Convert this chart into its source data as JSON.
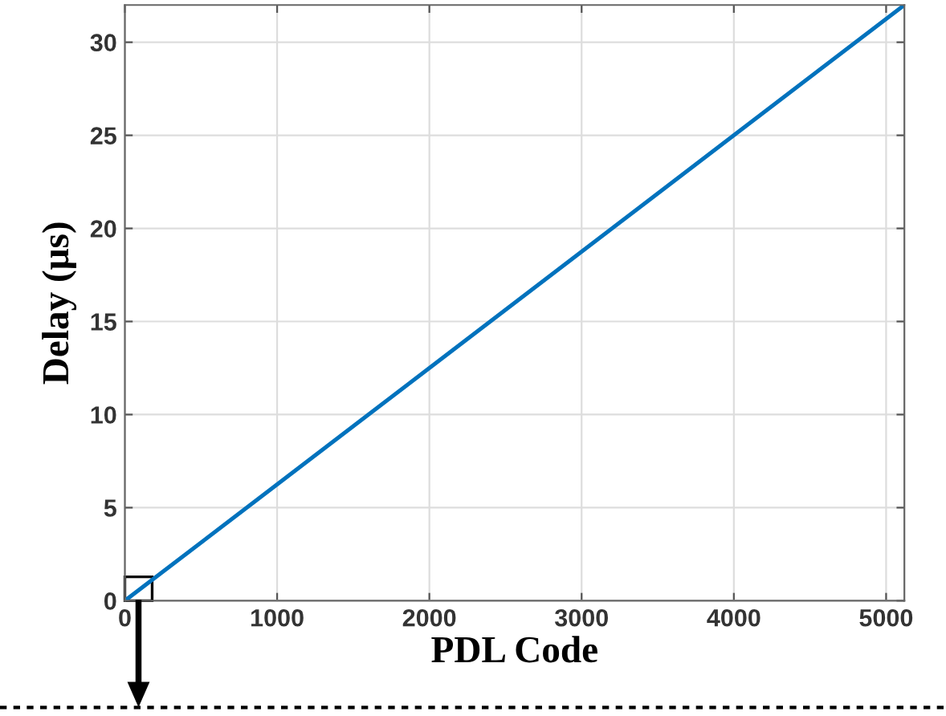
{
  "chart_data": {
    "type": "line",
    "xlabel": "PDL Code",
    "ylabel": "Delay (μs)",
    "x": [
      0,
      1000,
      2000,
      3000,
      4000,
      5120
    ],
    "series": [
      {
        "color": "#0072bd",
        "values": [
          0,
          6.25,
          12.5,
          18.75,
          25,
          32
        ]
      }
    ],
    "xlim": [
      0,
      5120
    ],
    "ylim": [
      0,
      32
    ],
    "xticks": [
      0,
      1000,
      2000,
      3000,
      4000,
      5000
    ],
    "yticks": [
      0,
      5,
      10,
      15,
      20,
      25,
      30
    ],
    "grid": true,
    "legend": false,
    "marker": "none",
    "line_style": "solid"
  }
}
